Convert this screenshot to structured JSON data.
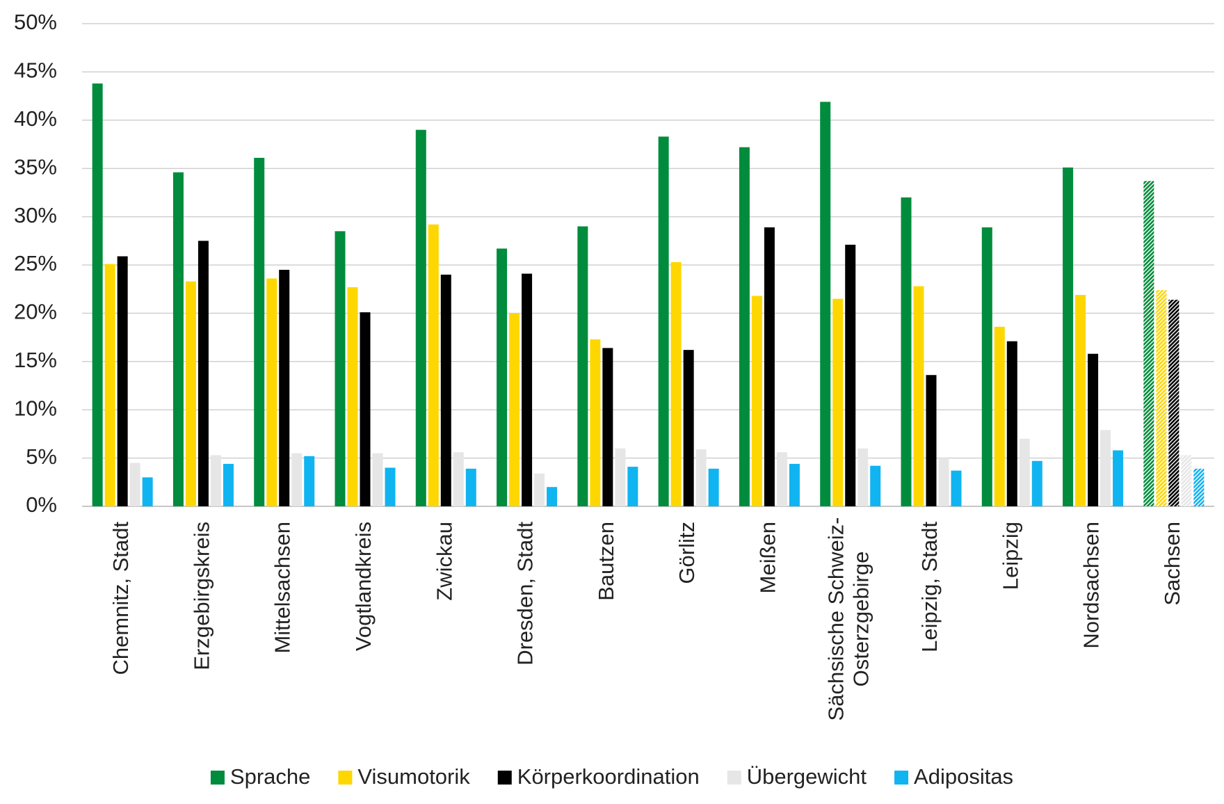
{
  "chart_data": {
    "type": "bar",
    "categories": [
      "Chemnitz, Stadt",
      "Erzgebirgskreis",
      "Mittelsachsen",
      "Vogtlandkreis",
      "Zwickau",
      "Dresden, Stadt",
      "Bautzen",
      "Görlitz",
      "Meißen",
      "Sächsische Schweiz-Osterzgebirge",
      "Leipzig, Stadt",
      "Leipzig",
      "Nordsachsen",
      "Sachsen"
    ],
    "series": [
      {
        "name": "Sprache",
        "color": "#008c3c",
        "values": [
          43.8,
          34.6,
          36.1,
          28.5,
          39.0,
          26.7,
          29.0,
          38.3,
          37.2,
          41.9,
          32.0,
          28.9,
          35.1,
          33.7
        ]
      },
      {
        "name": "Visumotorik",
        "color": "#ffd700",
        "values": [
          25.1,
          23.3,
          23.6,
          22.7,
          29.2,
          20.0,
          17.3,
          25.3,
          21.8,
          21.5,
          22.8,
          18.6,
          21.9,
          22.4
        ]
      },
      {
        "name": "Körperkoordination",
        "color": "#000000",
        "values": [
          25.9,
          27.5,
          24.5,
          20.1,
          24.0,
          24.1,
          16.4,
          16.2,
          28.9,
          27.1,
          13.6,
          17.1,
          15.8,
          21.4
        ]
      },
      {
        "name": "Übergewicht",
        "color": "#e6e6e6",
        "values": [
          4.5,
          5.3,
          5.5,
          5.5,
          5.6,
          3.4,
          6.0,
          5.9,
          5.6,
          6.0,
          5.0,
          7.0,
          7.9,
          5.3
        ]
      },
      {
        "name": "Adipositas",
        "color": "#10b4f0",
        "values": [
          3.0,
          4.4,
          5.2,
          4.0,
          3.9,
          2.0,
          4.1,
          3.9,
          4.4,
          4.2,
          3.7,
          4.7,
          5.8,
          3.9
        ]
      }
    ],
    "ylim": [
      0,
      50
    ],
    "yticks": [
      {
        "value": 0,
        "label": "0%"
      },
      {
        "value": 5,
        "label": "5%"
      },
      {
        "value": 10,
        "label": "10%"
      },
      {
        "value": 15,
        "label": "15%"
      },
      {
        "value": 20,
        "label": "20%"
      },
      {
        "value": 25,
        "label": "25%"
      },
      {
        "value": 30,
        "label": "30%"
      },
      {
        "value": 35,
        "label": "35%"
      },
      {
        "value": 40,
        "label": "40%"
      },
      {
        "value": 45,
        "label": "45%"
      },
      {
        "value": 50,
        "label": "50%"
      }
    ],
    "grid": true,
    "legend": "bottom",
    "hatched_categories": [
      13
    ]
  }
}
